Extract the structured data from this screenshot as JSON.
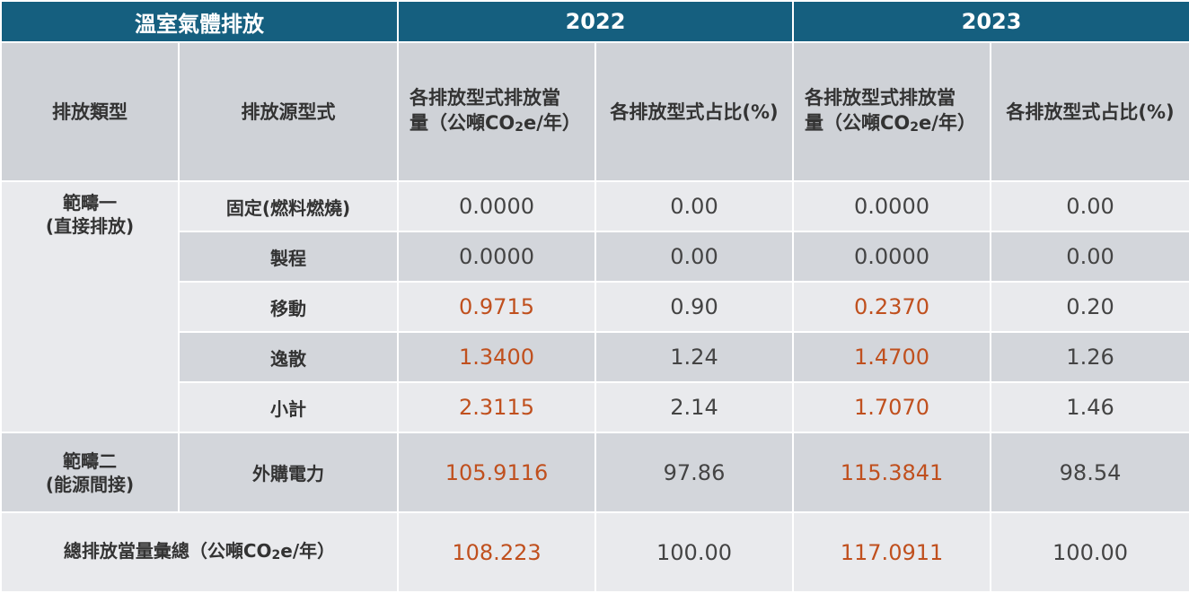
{
  "header": {
    "category_title": "溫室氣體排放",
    "year_1": "2022",
    "year_2": "2023"
  },
  "columns": {
    "emission_category": "排放類型",
    "emission_source": "排放源型式",
    "amount_label_line1": "各排放型式排放當",
    "amount_label_line2_prefix": "量（公噸CO",
    "amount_label_sub": "2",
    "amount_label_line2_suffix": "e/年）",
    "share_label": "各排放型式占比(%)"
  },
  "scope1": {
    "label_line1": "範疇一",
    "label_line2": "(直接排放)",
    "rows": [
      {
        "source": "固定(燃料燃燒)",
        "amount_2022": "0.0000",
        "share_2022": "0.00",
        "amount_2023": "0.0000",
        "share_2023": "0.00"
      },
      {
        "source": "製程",
        "amount_2022": "0.0000",
        "share_2022": "0.00",
        "amount_2023": "0.0000",
        "share_2023": "0.00"
      },
      {
        "source": "移動",
        "amount_2022": "0.9715",
        "share_2022": "0.90",
        "amount_2023": "0.2370",
        "share_2023": "0.20"
      },
      {
        "source": "逸散",
        "amount_2022": "1.3400",
        "share_2022": "1.24",
        "amount_2023": "1.4700",
        "share_2023": "1.26"
      },
      {
        "source": "小計",
        "amount_2022": "2.3115",
        "share_2022": "2.14",
        "amount_2023": "1.7070",
        "share_2023": "1.46"
      }
    ]
  },
  "scope2": {
    "label_line1": "範疇二",
    "label_line2": "(能源間接)",
    "source": "外購電力",
    "amount_2022": "105.9116",
    "share_2022": "97.86",
    "amount_2023": "115.3841",
    "share_2023": "98.54"
  },
  "total": {
    "label_prefix": "總排放當量彙總（公噸CO",
    "label_sub": "2",
    "label_suffix": "e/年）",
    "amount_2022": "108.223",
    "share_2022": "100.00",
    "amount_2023": "117.0911",
    "share_2023": "100.00"
  },
  "colors": {
    "header_bg": "#155f7f",
    "subheader_bg": "#cfd2d7",
    "row_light": "#e9eaed",
    "row_dark": "#d3d6db",
    "highlight_text": "#c0501e"
  }
}
